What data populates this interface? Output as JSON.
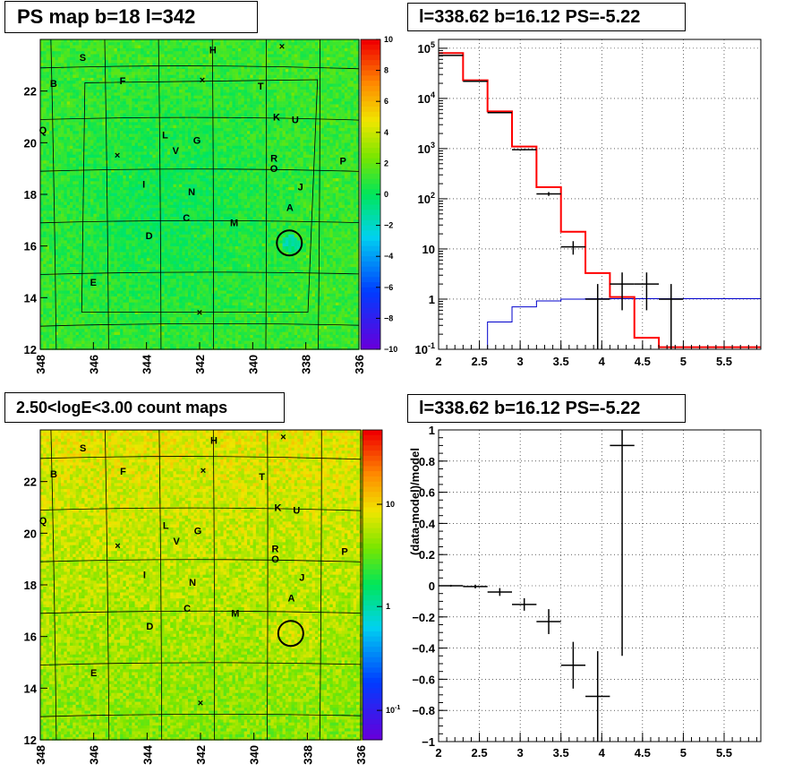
{
  "titles": {
    "ps_map": "PS map b=18 l=342",
    "spectrum": "l=338.62 b=16.12 PS=-5.22",
    "count_map": "2.50<logE<3.00 count maps",
    "residual": "l=338.62 b=16.12 PS=-5.22"
  },
  "colors": {
    "data": "#000000",
    "total_model": "#ff0000",
    "source_model": "#0000cc"
  },
  "chart_data": [
    {
      "type": "heatmap",
      "id": "ps_map",
      "title": "PS map b=18 l=342",
      "x_ticks": [
        "348",
        "346",
        "344",
        "342",
        "340",
        "338",
        "336"
      ],
      "y_ticks": [
        "12",
        "14",
        "16",
        "18",
        "20",
        "22"
      ],
      "xlim": [
        348,
        336
      ],
      "ylim": [
        12,
        24
      ],
      "colorbar": {
        "range": [
          -10,
          10
        ],
        "ticks": [
          "10",
          "8",
          "6",
          "4",
          "2",
          "0",
          "−2",
          "−4",
          "−6",
          "−8",
          "−10"
        ],
        "palette": "rainbow"
      },
      "source_labels": [
        {
          "text": "S",
          "l": 346.4,
          "b": 23.3
        },
        {
          "text": "H",
          "l": 341.5,
          "b": 23.6
        },
        {
          "text": "B",
          "l": 347.5,
          "b": 22.3
        },
        {
          "text": "F",
          "l": 344.9,
          "b": 22.4
        },
        {
          "text": "T",
          "l": 339.7,
          "b": 22.2
        },
        {
          "text": "K",
          "l": 339.1,
          "b": 21.0
        },
        {
          "text": "U",
          "l": 338.4,
          "b": 20.9
        },
        {
          "text": "Q",
          "l": 347.9,
          "b": 20.5
        },
        {
          "text": "L",
          "l": 343.3,
          "b": 20.3
        },
        {
          "text": "G",
          "l": 342.1,
          "b": 20.1
        },
        {
          "text": "V",
          "l": 342.9,
          "b": 19.7
        },
        {
          "text": "R",
          "l": 339.2,
          "b": 19.4
        },
        {
          "text": "P",
          "l": 336.6,
          "b": 19.3
        },
        {
          "text": "O",
          "l": 339.2,
          "b": 19.0
        },
        {
          "text": "I",
          "l": 344.1,
          "b": 18.4
        },
        {
          "text": "J",
          "l": 338.2,
          "b": 18.3
        },
        {
          "text": "N",
          "l": 342.3,
          "b": 18.1
        },
        {
          "text": "A",
          "l": 338.6,
          "b": 17.5
        },
        {
          "text": "C",
          "l": 342.5,
          "b": 17.1
        },
        {
          "text": "M",
          "l": 340.7,
          "b": 16.9
        },
        {
          "text": "D",
          "l": 343.9,
          "b": 16.4
        },
        {
          "text": "E",
          "l": 346.0,
          "b": 14.6
        }
      ],
      "crosses": [
        {
          "l": 338.9,
          "b": 23.7
        },
        {
          "l": 341.9,
          "b": 22.4
        },
        {
          "l": 345.1,
          "b": 19.5
        },
        {
          "l": 342.0,
          "b": 13.4
        }
      ],
      "circle": {
        "l": 338.62,
        "b": 16.12
      }
    },
    {
      "type": "line",
      "id": "spectrum",
      "title": "l=338.62 b=16.12 PS=-5.22",
      "x_ticks": [
        "2",
        "2.5",
        "3",
        "3.5",
        "4",
        "4.5",
        "5",
        "5.5"
      ],
      "y_ticks": [
        "10^-1",
        "1",
        "10",
        "10^2",
        "10^3",
        "10^4",
        "10^5"
      ],
      "xlim": [
        2,
        5.95
      ],
      "ylim": [
        0.1,
        150000
      ],
      "log_y": true,
      "grid": true,
      "data_points": [
        {
          "x": 2.15,
          "y": 72000,
          "xerr": 0.15,
          "yerr_lo": 270,
          "yerr_hi": 270
        },
        {
          "x": 2.45,
          "y": 22000,
          "xerr": 0.15,
          "yerr_lo": 150,
          "yerr_hi": 150
        },
        {
          "x": 2.75,
          "y": 5200,
          "xerr": 0.15,
          "yerr_lo": 72,
          "yerr_hi": 72
        },
        {
          "x": 3.05,
          "y": 950,
          "xerr": 0.15,
          "yerr_lo": 31,
          "yerr_hi": 31
        },
        {
          "x": 3.35,
          "y": 125,
          "xerr": 0.15,
          "yerr_lo": 11,
          "yerr_hi": 11
        },
        {
          "x": 3.65,
          "y": 11,
          "xerr": 0.15,
          "yerr_lo": 3.3,
          "yerr_hi": 3.3
        },
        {
          "x": 3.95,
          "y": 1,
          "xerr": 0.15,
          "yerr_lo": 0.95,
          "yerr_hi": 1
        },
        {
          "x": 4.25,
          "y": 2,
          "xerr": 0.15,
          "yerr_lo": 1.4,
          "yerr_hi": 1.4
        },
        {
          "x": 4.55,
          "y": 2,
          "xerr": 0.15,
          "yerr_lo": 1.4,
          "yerr_hi": 1.4
        },
        {
          "x": 4.85,
          "y": 1,
          "xerr": 0.15,
          "yerr_lo": 0.95,
          "yerr_hi": 1
        }
      ],
      "total_model": {
        "edges": [
          2.0,
          2.3,
          2.6,
          2.9,
          3.2,
          3.5,
          3.8,
          4.1,
          4.4,
          4.7,
          5.0,
          5.95
        ],
        "values": [
          80000,
          23000,
          5500,
          1100,
          170,
          22,
          3.3,
          1.1,
          0.17,
          0.11,
          0.11
        ]
      },
      "source_model": {
        "edges": [
          2.0,
          2.3,
          2.6,
          2.9,
          3.2,
          3.5,
          3.8,
          4.1,
          4.4,
          4.7,
          5.0,
          5.95
        ],
        "values": [
          0.02,
          0.06,
          0.35,
          0.7,
          0.92,
          1,
          1.02,
          1.02,
          1.02,
          1.02,
          1.02
        ]
      }
    },
    {
      "type": "heatmap",
      "id": "count_map",
      "title": "2.50<logE<3.00 count maps",
      "x_ticks": [
        "348",
        "346",
        "344",
        "342",
        "340",
        "338",
        "336"
      ],
      "y_ticks": [
        "12",
        "14",
        "16",
        "18",
        "20",
        "22"
      ],
      "xlim": [
        348,
        336
      ],
      "ylim": [
        12,
        24
      ],
      "colorbar": {
        "log_scale": true,
        "ticks": [
          "10",
          "1",
          "10^-1"
        ],
        "palette": "rainbow"
      }
    },
    {
      "type": "scatter",
      "id": "residual",
      "title": "l=338.62 b=16.12 PS=-5.22",
      "ylabel": "(data-model)/model",
      "x_ticks": [
        "2",
        "2.5",
        "3",
        "3.5",
        "4",
        "4.5",
        "5",
        "5.5"
      ],
      "y_ticks": [
        "−1",
        "−0.8",
        "−0.6",
        "−0.4",
        "−0.2",
        "0",
        "0.2",
        "0.4",
        "0.6",
        "0.8",
        "1"
      ],
      "xlim": [
        2,
        5.95
      ],
      "ylim": [
        -1,
        1
      ],
      "grid": true,
      "points": [
        {
          "x": 2.15,
          "y": 0.0,
          "xerr": 0.15,
          "yerr": 0.006
        },
        {
          "x": 2.45,
          "y": -0.005,
          "xerr": 0.15,
          "yerr": 0.012
        },
        {
          "x": 2.75,
          "y": -0.04,
          "xerr": 0.15,
          "yerr": 0.025
        },
        {
          "x": 3.05,
          "y": -0.12,
          "xerr": 0.15,
          "yerr": 0.04
        },
        {
          "x": 3.35,
          "y": -0.23,
          "xerr": 0.15,
          "yerr": 0.08
        },
        {
          "x": 3.65,
          "y": -0.51,
          "xerr": 0.15,
          "yerr": 0.15
        },
        {
          "x": 3.95,
          "y": -0.71,
          "xerr": 0.15,
          "yerr": 0.29
        },
        {
          "x": 4.25,
          "y": 0.9,
          "xerr": 0.15,
          "yerr": 1.35
        }
      ]
    }
  ]
}
